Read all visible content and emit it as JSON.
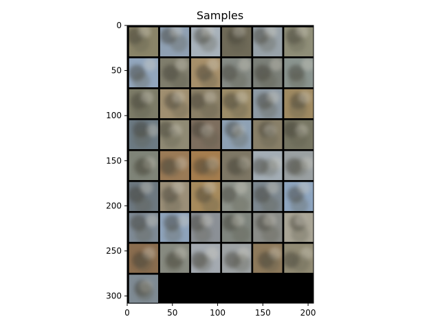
{
  "chart_data": {
    "type": "heatmap",
    "title": "Samples",
    "xlabel": "",
    "ylabel": "",
    "xlim": [
      0,
      206
    ],
    "ylim": [
      308,
      0
    ],
    "x_ticks": [
      0,
      50,
      100,
      150,
      200
    ],
    "y_ticks": [
      0,
      50,
      100,
      150,
      200,
      250,
      300
    ],
    "grid": false,
    "tile_grid": {
      "columns": 6,
      "filled_rows": 8,
      "last_row_tiles": 1
    },
    "background_color": "#000000",
    "tiles": [
      [
        "#8a8468",
        "#8fa0b3",
        "#a8b2bb",
        "#6f6a58",
        "#98a2a9",
        "#8f8e78"
      ],
      [
        "#92a6bd",
        "#7f7d6c",
        "#a68f6a",
        "#858a84",
        "#7b7f78",
        "#8a948f"
      ],
      [
        "#7d7c68",
        "#a08f70",
        "#8a7f66",
        "#9c8c68",
        "#8e9aa4",
        "#9f8a62"
      ],
      [
        "#6c7a83",
        "#8f8a74",
        "#7d6e5e",
        "#8ea1b4",
        "#887f68",
        "#767562"
      ],
      [
        "#7f8478",
        "#9a7a56",
        "#a57d4e",
        "#7e7765",
        "#a3adb5",
        "#9aa0a2"
      ],
      [
        "#6d7880",
        "#9b8f78",
        "#a68a5c",
        "#8d928a",
        "#7d8890",
        "#8ea5bf"
      ],
      [
        "#7e8a95",
        "#8ea3bb",
        "#8b9096",
        "#7f857e",
        "#8a8c88",
        "#a9a596"
      ],
      [
        "#8a6d4f",
        "#878a80",
        "#a4aab1",
        "#9ea3a5",
        "#8e7a5c",
        "#918b74"
      ],
      [
        "#7f8b94"
      ]
    ]
  }
}
